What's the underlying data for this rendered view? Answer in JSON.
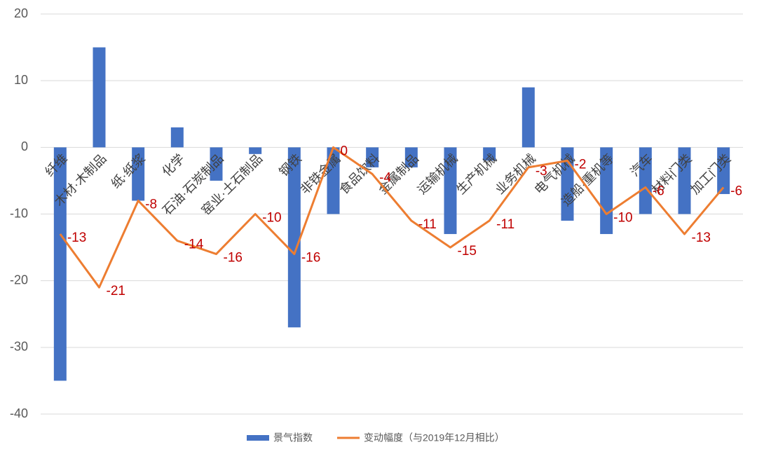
{
  "chart_data": {
    "type": "bar_line",
    "categories": [
      "纤维",
      "木材·木制品",
      "纸·纸浆",
      "化学",
      "石油·石炭制品",
      "窑业·土石制品",
      "钢铁",
      "非铁金属",
      "食品饮料",
      "金属制品",
      "运输机械",
      "生产机械",
      "业务机械",
      "电气机械",
      "造船·重机等",
      "汽车",
      "材料门类",
      "加工门类"
    ],
    "series": [
      {
        "name": "景气指数",
        "type": "bar",
        "color": "#4472c4",
        "values": [
          -35,
          15,
          -8,
          3,
          -5,
          -1,
          -27,
          -10,
          -3,
          -3,
          -13,
          -2,
          9,
          -11,
          -13,
          -10,
          -10,
          -7
        ]
      },
      {
        "name": "变动幅度（与2019年12月相比）",
        "type": "line",
        "color": "#ed7d31",
        "label_color": "#c00000",
        "values": [
          -13,
          -21,
          -8,
          -14,
          -16,
          -10,
          -16,
          0,
          -4,
          -11,
          -15,
          -11,
          -3,
          -2,
          -10,
          -6,
          -13,
          -6
        ]
      }
    ],
    "ylim": [
      -40,
      20
    ],
    "yticks": [
      -40,
      -30,
      -20,
      -10,
      0,
      10,
      20
    ],
    "grid": true,
    "legend": "bottom"
  }
}
